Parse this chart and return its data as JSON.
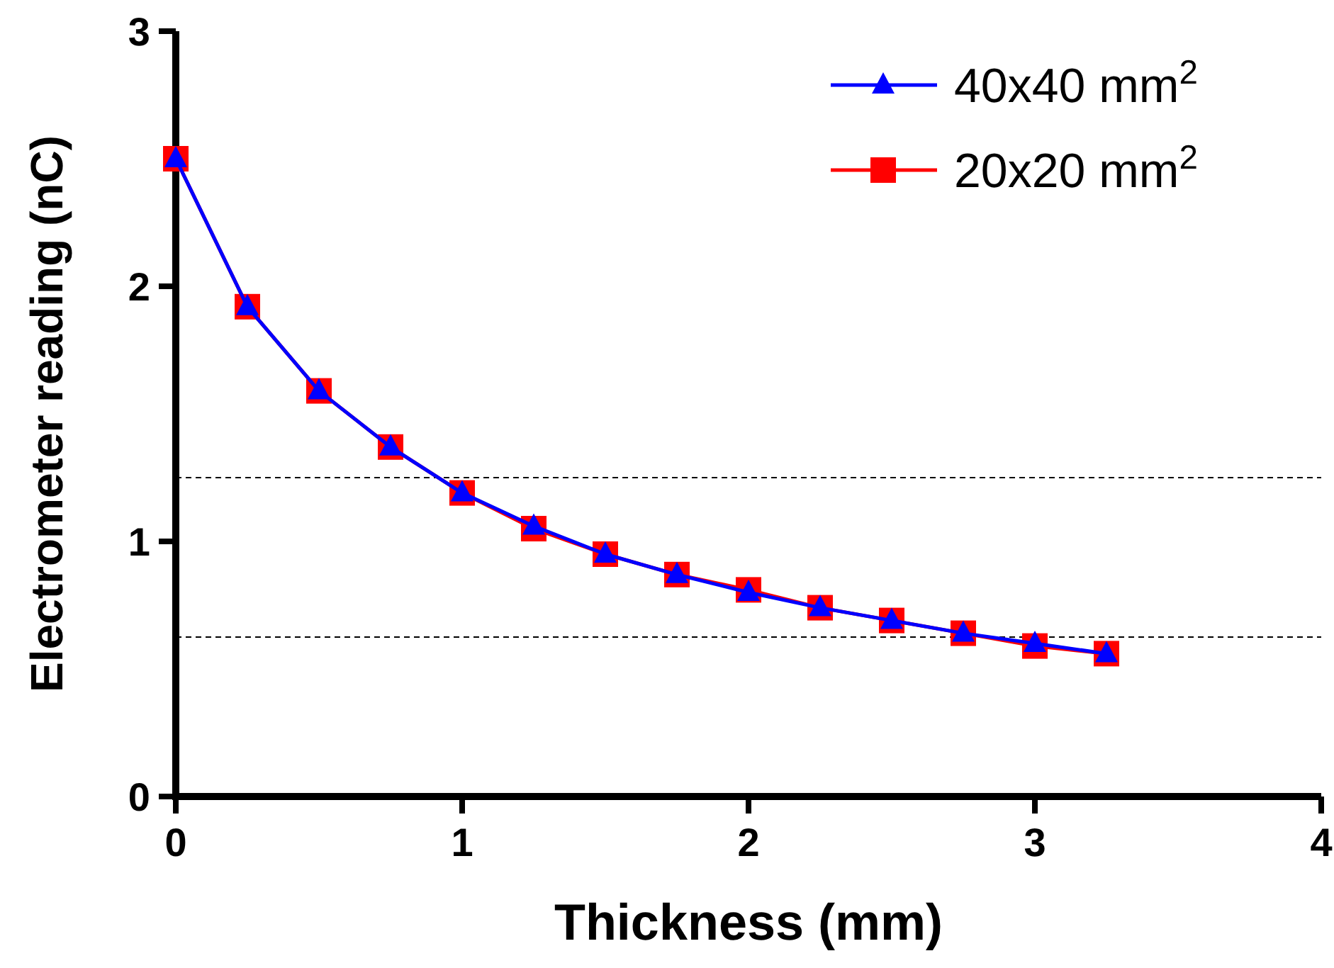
{
  "chart_data": {
    "type": "line",
    "xlabel": "Thickness (mm)",
    "ylabel": "Electrometer reading (nC)",
    "x": [
      0,
      0.25,
      0.5,
      0.75,
      1,
      1.25,
      1.5,
      1.75,
      2,
      2.25,
      2.5,
      2.75,
      3,
      3.25
    ],
    "series": [
      {
        "name": "40x40 mm$^{2}$",
        "color": "#0000ff",
        "marker": "triangle",
        "values": [
          2.5,
          1.92,
          1.59,
          1.37,
          1.19,
          1.06,
          0.95,
          0.87,
          0.8,
          0.74,
          0.69,
          0.64,
          0.6,
          0.56
        ]
      },
      {
        "name": "20x20 mm$^{2}$",
        "color": "#ff0000",
        "marker": "square",
        "values": [
          2.5,
          1.92,
          1.59,
          1.37,
          1.19,
          1.05,
          0.95,
          0.87,
          0.81,
          0.74,
          0.69,
          0.64,
          0.59,
          0.56
        ]
      }
    ],
    "xlim": [
      0,
      4
    ],
    "xticks": [
      0,
      1,
      2,
      3,
      4
    ],
    "ylim": [
      0,
      3
    ],
    "yticks": [
      0,
      1,
      2,
      3
    ],
    "ref_lines": [
      {
        "axis": "y",
        "value": 1.25,
        "color": "#000000",
        "line_style": "dashed"
      },
      {
        "axis": "y",
        "value": 0.625,
        "color": "#000000",
        "line_style": "dashed"
      }
    ],
    "legend": "top right",
    "grid": false
  }
}
